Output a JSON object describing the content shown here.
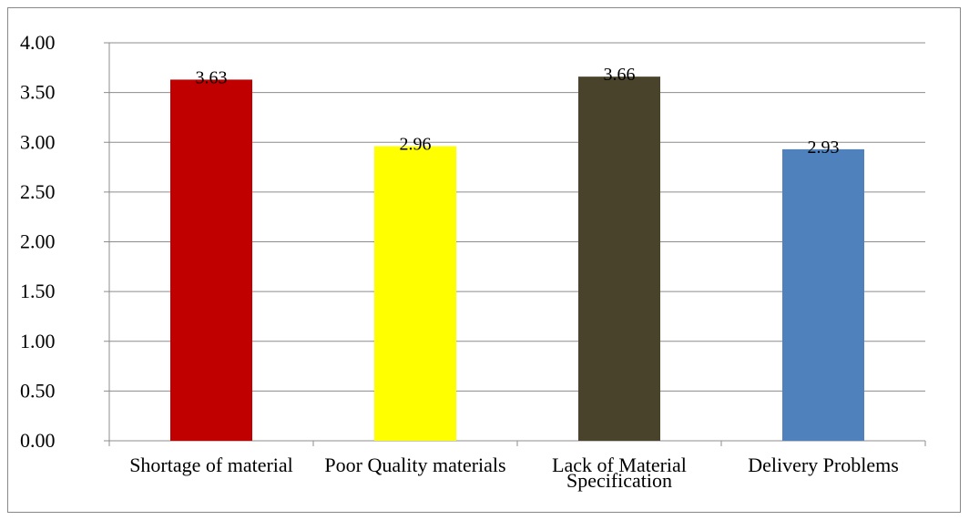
{
  "chart_data": {
    "type": "bar",
    "categories": [
      "Shortage of material",
      "Poor Quality materials",
      "Lack of Material Specification",
      "Delivery Problems"
    ],
    "values": [
      3.63,
      2.96,
      3.66,
      2.93
    ],
    "colors": [
      "#c00000",
      "#ffff00",
      "#4a432c",
      "#4f81bd"
    ],
    "ylim": [
      0,
      4
    ],
    "yticks": [
      {
        "value": 0,
        "label": "0.00"
      },
      {
        "value": 0.5,
        "label": "0.50"
      },
      {
        "value": 1,
        "label": "1.00"
      },
      {
        "value": 1.5,
        "label": "1.50"
      },
      {
        "value": 2,
        "label": "2.00"
      },
      {
        "value": 2.5,
        "label": "2.50"
      },
      {
        "value": 3,
        "label": "3.00"
      },
      {
        "value": 3.5,
        "label": "3.50"
      },
      {
        "value": 4,
        "label": "4.00"
      }
    ],
    "grid": true
  }
}
